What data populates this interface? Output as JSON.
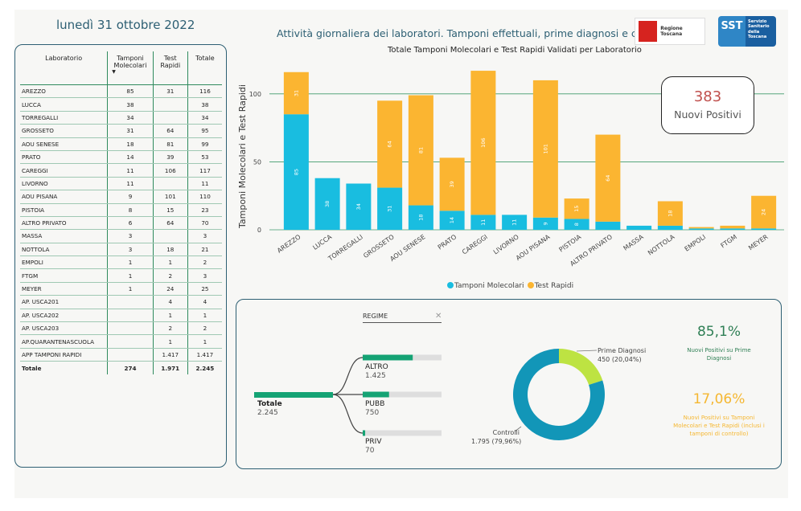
{
  "header": {
    "date": "lunedì 31 ottobre 2022",
    "title": "Attività giornaliera dei laboratori. Tamponi effettuali, prime diagnosi e controlli",
    "logo_rt_text": "Regione Toscana",
    "logo_sst_short": "SST",
    "logo_sst_text": "Servizio Sanitario della Toscana"
  },
  "table": {
    "headers": {
      "lab": "Laboratorio",
      "mol": "Tamponi Molecolari",
      "rapid": "Test Rapidi",
      "total": "Totale"
    },
    "rows": [
      {
        "lab": "AREZZO",
        "mol": "85",
        "rapid": "31",
        "total": "116"
      },
      {
        "lab": "LUCCA",
        "mol": "38",
        "rapid": "",
        "total": "38"
      },
      {
        "lab": "TORREGALLI",
        "mol": "34",
        "rapid": "",
        "total": "34"
      },
      {
        "lab": "GROSSETO",
        "mol": "31",
        "rapid": "64",
        "total": "95"
      },
      {
        "lab": "AOU SENESE",
        "mol": "18",
        "rapid": "81",
        "total": "99"
      },
      {
        "lab": "PRATO",
        "mol": "14",
        "rapid": "39",
        "total": "53"
      },
      {
        "lab": "CAREGGI",
        "mol": "11",
        "rapid": "106",
        "total": "117"
      },
      {
        "lab": "LIVORNO",
        "mol": "11",
        "rapid": "",
        "total": "11"
      },
      {
        "lab": "AOU PISANA",
        "mol": "9",
        "rapid": "101",
        "total": "110"
      },
      {
        "lab": "PISTOIA",
        "mol": "8",
        "rapid": "15",
        "total": "23"
      },
      {
        "lab": "ALTRO PRIVATO",
        "mol": "6",
        "rapid": "64",
        "total": "70"
      },
      {
        "lab": "MASSA",
        "mol": "3",
        "rapid": "",
        "total": "3"
      },
      {
        "lab": "NOTTOLA",
        "mol": "3",
        "rapid": "18",
        "total": "21"
      },
      {
        "lab": "EMPOLI",
        "mol": "1",
        "rapid": "1",
        "total": "2"
      },
      {
        "lab": "FTGM",
        "mol": "1",
        "rapid": "2",
        "total": "3"
      },
      {
        "lab": "MEYER",
        "mol": "1",
        "rapid": "24",
        "total": "25"
      },
      {
        "lab": "AP. USCA201",
        "mol": "",
        "rapid": "4",
        "total": "4"
      },
      {
        "lab": "AP. USCA202",
        "mol": "",
        "rapid": "1",
        "total": "1"
      },
      {
        "lab": "AP. USCA203",
        "mol": "",
        "rapid": "2",
        "total": "2"
      },
      {
        "lab": "AP.QUARANTENASCUOLA",
        "mol": "",
        "rapid": "1",
        "total": "1"
      },
      {
        "lab": "APP TAMPONI RAPIDI",
        "mol": "",
        "rapid": "1.417",
        "total": "1.417"
      }
    ],
    "total_row": {
      "lab": "Totale",
      "mol": "274",
      "rapid": "1.971",
      "total": "2.245"
    }
  },
  "kpi": {
    "value": "383",
    "label": "Nuovi Positivi"
  },
  "chart_data": [
    {
      "type": "bar",
      "stacked": true,
      "title": "Totale Tamponi Molecolari e Test Rapidi Validati per Laboratorio",
      "ylabel": "Tamponi Molecolari e Test Rapidi",
      "ylim": [
        0,
        120
      ],
      "yticks": [
        0,
        50,
        100
      ],
      "grid": true,
      "legend_position": "bottom",
      "categories": [
        "AREZZO",
        "LUCCA",
        "TORREGALLI",
        "GROSSETO",
        "AOU SENESE",
        "PRATO",
        "CAREGGI",
        "LIVORNO",
        "AOU PISANA",
        "PISTOIA",
        "ALTRO PRIVATO",
        "MASSA",
        "NOTTOLA",
        "EMPOLI",
        "FTGM",
        "MEYER"
      ],
      "series": [
        {
          "name": "Tamponi Molecolari",
          "color": "#19bde0",
          "values": [
            85,
            38,
            34,
            31,
            18,
            14,
            11,
            11,
            9,
            8,
            6,
            3,
            3,
            1,
            1,
            1
          ]
        },
        {
          "name": "Test Rapidi",
          "color": "#fbb531",
          "values": [
            31,
            0,
            0,
            64,
            81,
            39,
            106,
            0,
            101,
            15,
            64,
            0,
            18,
            1,
            2,
            24
          ]
        }
      ]
    },
    {
      "type": "pie",
      "donut": true,
      "labels": [
        "Controlli",
        "Prime Diagnosi"
      ],
      "values": [
        1795,
        450
      ],
      "colors": [
        "#1296b8",
        "#bde342"
      ],
      "value_labels": [
        "1.795 (79,96%)",
        "450 (20,04%)"
      ]
    },
    {
      "type": "bar",
      "orientation": "horizontal",
      "title": "REGIME",
      "root": {
        "label": "Totale",
        "value": 2245,
        "value_label": "2.245"
      },
      "categories": [
        "ALTRO",
        "PUBB",
        "PRIV"
      ],
      "values": [
        1425,
        750,
        70
      ],
      "value_labels": [
        "1.425",
        "750",
        "70"
      ],
      "color": "#15a374"
    }
  ],
  "metrics": {
    "pct1_value": "85,1%",
    "pct1_desc": "Nuovi Positivi su Prime Diagnosi",
    "pct2_value": "17,06%",
    "pct2_desc": "Nuovi Positivi su Tamponi Molecolari e Test Rapidi (inclusi i tamponi di controllo)"
  },
  "regime": {
    "close_icon": "close-icon"
  }
}
